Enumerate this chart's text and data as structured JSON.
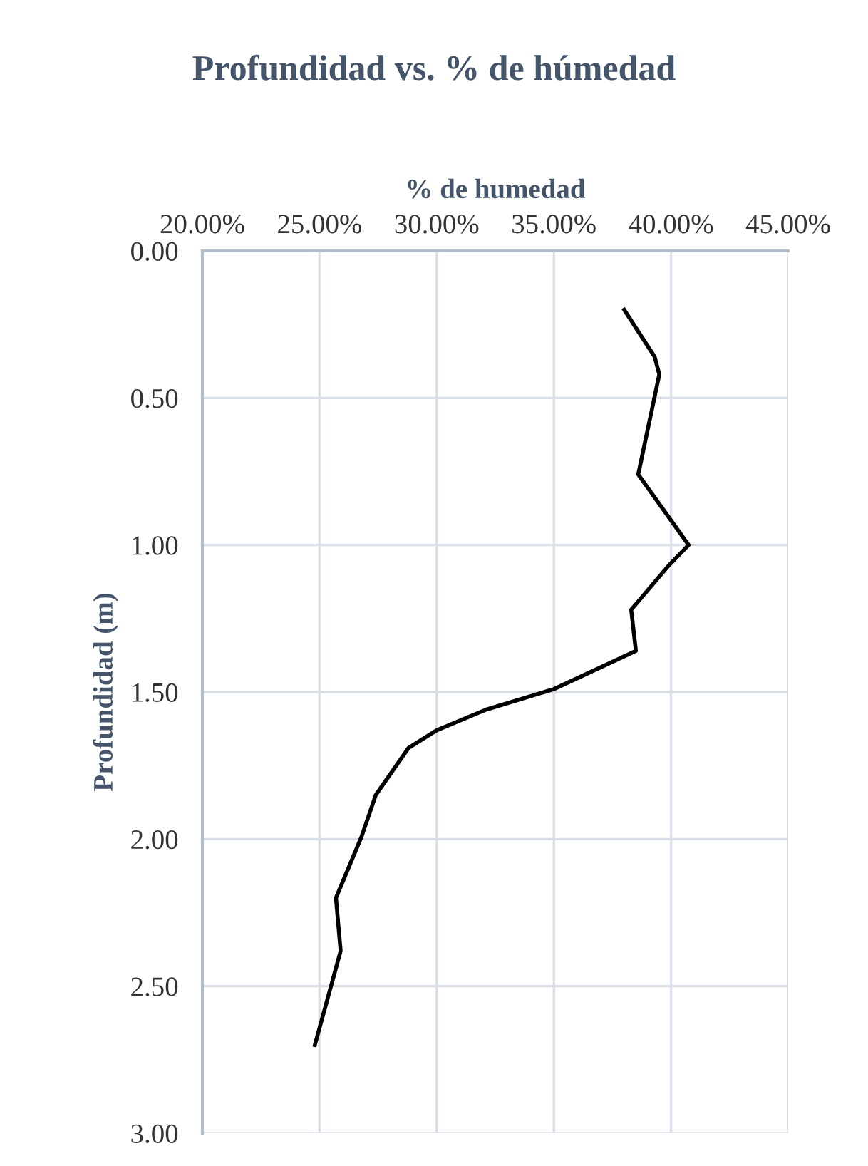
{
  "chart_data": {
    "type": "line",
    "title": "Profundidad vs. % de húmedad",
    "xlabel": "% de humedad",
    "ylabel": "Profundidad (m)",
    "x": [
      38.0,
      39.3,
      39.5,
      38.6,
      40.75,
      39.9,
      38.3,
      38.5,
      35.0,
      32.1,
      30.0,
      28.8,
      27.4,
      26.8,
      25.7,
      25.9,
      24.8
    ],
    "series": [
      {
        "color": "#000000",
        "values": [
          0.2,
          0.36,
          0.42,
          0.76,
          1.0,
          1.07,
          1.22,
          1.36,
          1.49,
          1.56,
          1.63,
          1.69,
          1.85,
          1.99,
          2.2,
          2.38,
          2.7
        ]
      }
    ],
    "xlim": [
      20,
      45
    ],
    "xticks": [
      {
        "value": 20,
        "label": "20.00%"
      },
      {
        "value": 25,
        "label": "25.00%"
      },
      {
        "value": 30,
        "label": "30.00%"
      },
      {
        "value": 35,
        "label": "35.00%"
      },
      {
        "value": 40,
        "label": "40.00%"
      },
      {
        "value": 45,
        "label": "45.00%"
      }
    ],
    "ylim": [
      3,
      0
    ],
    "yticks": [
      {
        "value": 0,
        "label": "0.00"
      },
      {
        "value": 0.5,
        "label": "0.50"
      },
      {
        "value": 1,
        "label": "1.00"
      },
      {
        "value": 1.5,
        "label": "1.50"
      },
      {
        "value": 2,
        "label": "2.00"
      },
      {
        "value": 2.5,
        "label": "2.50"
      },
      {
        "value": 3,
        "label": "3.00"
      }
    ],
    "grid": true,
    "legend": false,
    "marker": "none",
    "line_style": "solid"
  }
}
